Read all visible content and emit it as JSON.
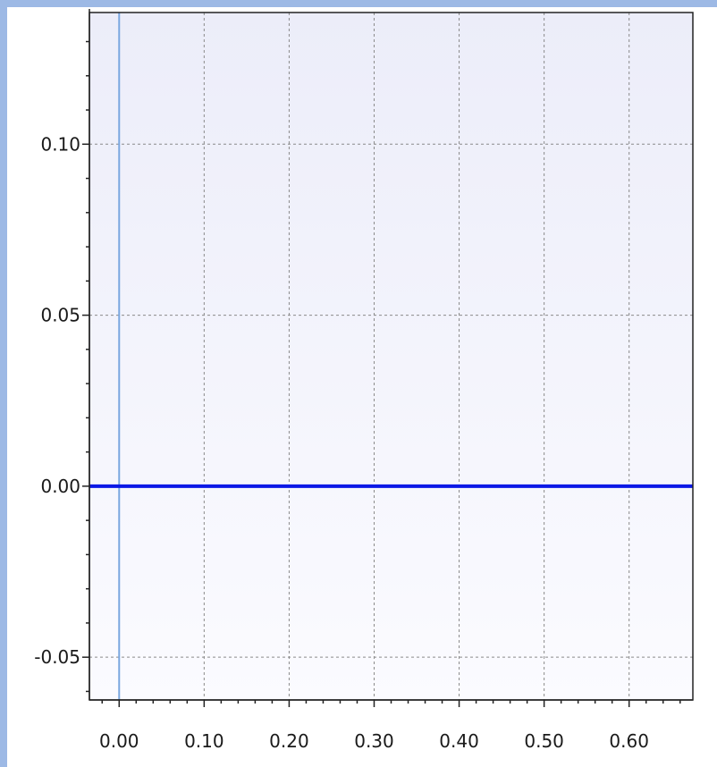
{
  "chart_data": {
    "type": "line",
    "title": "",
    "xlabel": "",
    "ylabel": "",
    "xlim": [
      -0.035,
      0.675
    ],
    "ylim": [
      -0.0625,
      0.1385
    ],
    "x_ticks": [
      0.0,
      0.1,
      0.2,
      0.3,
      0.4,
      0.5,
      0.6
    ],
    "x_tick_labels": [
      "0.00",
      "0.10",
      "0.20",
      "0.30",
      "0.40",
      "0.50",
      "0.60"
    ],
    "y_ticks": [
      -0.05,
      0.0,
      0.05,
      0.1
    ],
    "y_tick_labels": [
      "-0.05",
      "0.00",
      "0.05",
      "0.10"
    ],
    "grid": true,
    "series": [
      {
        "x": [
          -0.035,
          0.675
        ],
        "y": [
          0.0,
          0.0
        ],
        "color": "#0a18e6"
      }
    ],
    "reference_lines": [
      {
        "orientation": "vertical",
        "x": 0.0,
        "color": "#7aa7e0"
      }
    ]
  },
  "colors": {
    "frame_background": "#9db9e5",
    "plot_background_top": "#ecedf9",
    "plot_background_bottom": "#fbfbff",
    "axis_color": "#222222",
    "grid_color": "#8a8a8a"
  }
}
